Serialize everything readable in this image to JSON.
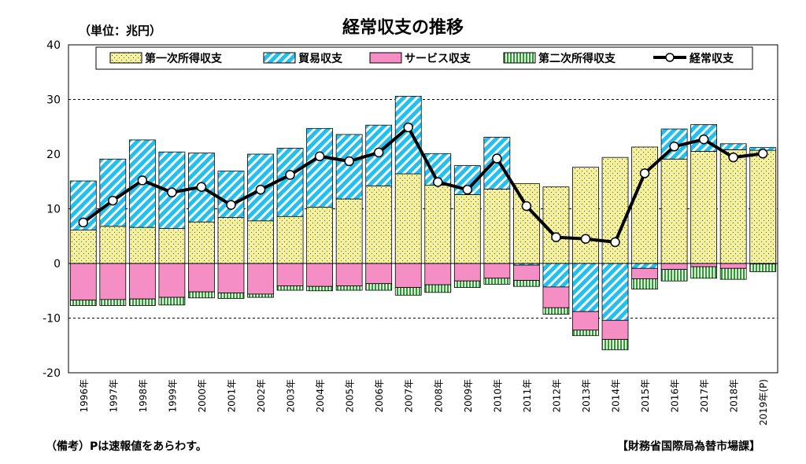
{
  "page": {
    "unit_note": "（単位：兆円）",
    "remark": "（備考）Pは速報値をあらわす。",
    "source": "【財務省国際局為替市場課】"
  },
  "chart_data": {
    "type": "bar",
    "stacked": true,
    "title": "経常収支の推移",
    "ylim": [
      -20,
      40
    ],
    "yticks": [
      40,
      30,
      20,
      10,
      0,
      -10,
      -20
    ],
    "gridlines": [
      30,
      10,
      -10
    ],
    "categories": [
      "1996年",
      "1997年",
      "1998年",
      "1999年",
      "2000年",
      "2001年",
      "2002年",
      "2003年",
      "2004年",
      "2005年",
      "2006年",
      "2007年",
      "2008年",
      "2009年",
      "2010年",
      "2011年",
      "2012年",
      "2013年",
      "2014年",
      "2015年",
      "2016年",
      "2017年",
      "2018年",
      "2019年(P)"
    ],
    "series": [
      {
        "name": "第一次所得収支",
        "key": "primary",
        "color": "#f6f29a",
        "values": [
          6.1,
          6.8,
          6.6,
          6.4,
          7.6,
          8.4,
          7.8,
          8.6,
          10.3,
          11.8,
          14.2,
          16.4,
          14.3,
          12.6,
          13.6,
          14.6,
          14.0,
          17.6,
          19.4,
          21.3,
          19.1,
          20.5,
          20.8,
          20.7
        ]
      },
      {
        "name": "貿易収支",
        "key": "trade",
        "color": "#22c0ef",
        "values": [
          9.0,
          12.3,
          16.0,
          14.0,
          12.6,
          8.5,
          12.2,
          12.5,
          14.4,
          11.8,
          11.1,
          14.2,
          5.8,
          5.3,
          9.5,
          -0.3,
          -4.3,
          -8.8,
          -10.4,
          -0.9,
          5.5,
          4.9,
          1.1,
          0.5
        ]
      },
      {
        "name": "サービス収支",
        "key": "services",
        "color": "#f58ec4",
        "values": [
          -6.7,
          -6.6,
          -6.5,
          -6.2,
          -5.2,
          -5.4,
          -5.6,
          -4.1,
          -4.2,
          -4.1,
          -3.7,
          -4.4,
          -3.9,
          -3.2,
          -2.7,
          -2.8,
          -3.8,
          -3.4,
          -3.5,
          -1.9,
          -1.1,
          -0.6,
          -0.9,
          -0.1
        ]
      },
      {
        "name": "第二次所得収支",
        "key": "secondary",
        "color": "#2f9a33",
        "values": [
          -1.0,
          -1.1,
          -1.2,
          -1.4,
          -1.1,
          -1.0,
          -0.6,
          -0.8,
          -0.8,
          -0.8,
          -1.2,
          -1.4,
          -1.4,
          -1.2,
          -1.1,
          -1.1,
          -1.2,
          -1.0,
          -1.9,
          -1.9,
          -2.1,
          -2.1,
          -2.0,
          -1.4
        ]
      },
      {
        "name": "経常収支",
        "key": "current",
        "type": "line",
        "color": "#000000",
        "values": [
          7.5,
          11.5,
          15.2,
          13.0,
          14.0,
          10.7,
          13.5,
          16.2,
          19.6,
          18.7,
          20.3,
          24.9,
          14.9,
          13.5,
          19.2,
          10.5,
          4.8,
          4.5,
          3.9,
          16.5,
          21.4,
          22.7,
          19.4,
          20.1
        ]
      }
    ]
  }
}
